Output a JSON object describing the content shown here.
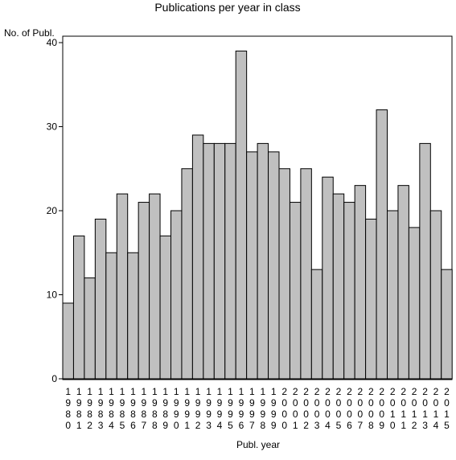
{
  "chart_data": {
    "type": "bar",
    "title": "Publications per year in class",
    "ylabel": "No. of Publ.",
    "xlabel": "Publ. year",
    "ylim": [
      0,
      40
    ],
    "yticks": [
      0,
      10,
      20,
      30,
      40
    ],
    "grid": false,
    "categories": [
      "1980",
      "1981",
      "1982",
      "1983",
      "1984",
      "1985",
      "1986",
      "1987",
      "1988",
      "1989",
      "1990",
      "1991",
      "1992",
      "1993",
      "1994",
      "1995",
      "1996",
      "1997",
      "1998",
      "1999",
      "2000",
      "2001",
      "2002",
      "2003",
      "2004",
      "2005",
      "2006",
      "2007",
      "2008",
      "2009",
      "2010",
      "2011",
      "2012",
      "2013",
      "2014",
      "2015"
    ],
    "values": [
      9,
      17,
      12,
      19,
      15,
      22,
      15,
      21,
      22,
      17,
      20,
      25,
      29,
      28,
      28,
      28,
      39,
      27,
      28,
      27,
      25,
      21,
      25,
      13,
      24,
      22,
      21,
      23,
      19,
      32,
      20,
      23,
      18,
      28,
      20,
      13
    ],
    "bar_color": "#c0c0c0",
    "edge_color": "#000000"
  }
}
